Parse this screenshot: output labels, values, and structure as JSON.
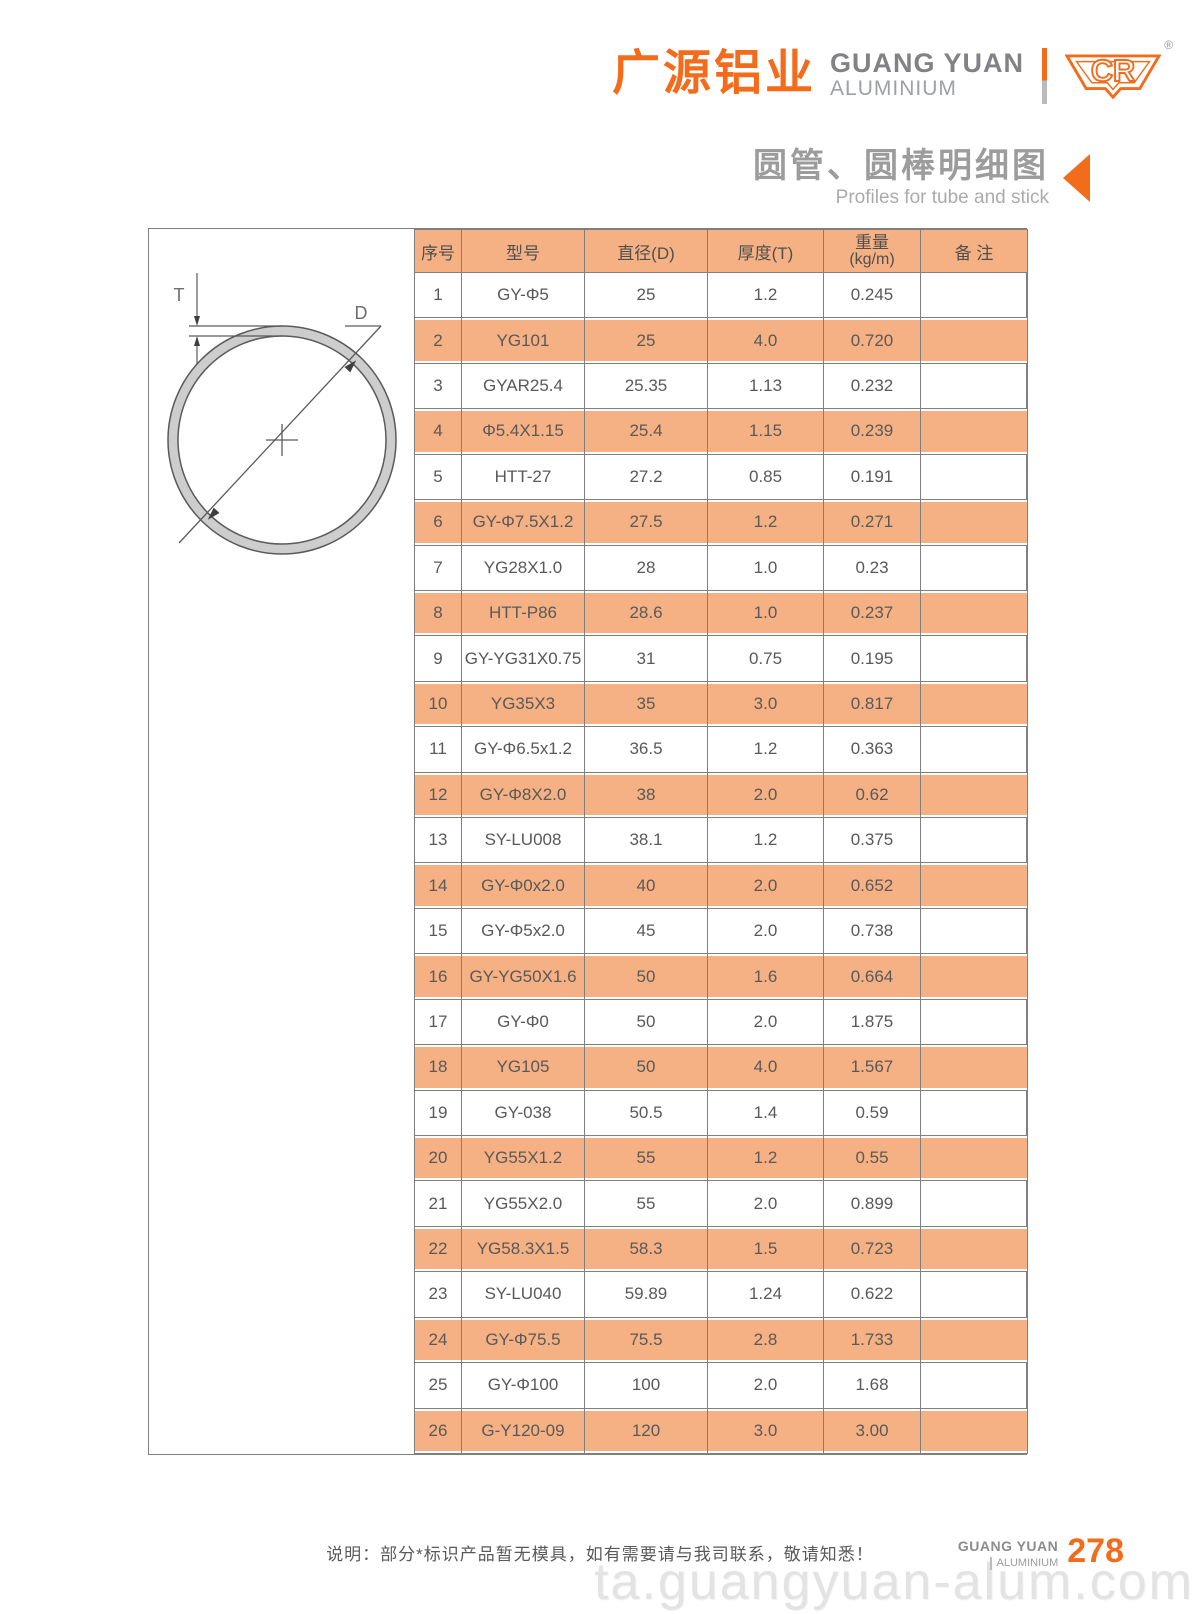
{
  "brand": {
    "logo_cn": "广源铝业",
    "logo_en_line1": "GUANG YUAN",
    "logo_en_line2": "ALUMINIUM",
    "logo_mark": "CR",
    "registered": "®",
    "accent_color": "#F26C1B"
  },
  "page_title": {
    "cn": "圆管、圆棒明细图",
    "en": "Profiles for tube and stick"
  },
  "diagram": {
    "label_d": "D",
    "label_t": "T"
  },
  "table": {
    "headers": [
      "序号",
      "型号",
      "直径(D)",
      "厚度(T)",
      "重量",
      "备 注"
    ],
    "weight_sub": "(kg/m)",
    "row_alt_color": "#F5B183",
    "border_color": "#7F7F7F",
    "rows": [
      [
        "1",
        "GY-Φ5",
        "25",
        "1.2",
        "0.245",
        ""
      ],
      [
        "2",
        "YG101",
        "25",
        "4.0",
        "0.720",
        ""
      ],
      [
        "3",
        "GYAR25.4",
        "25.35",
        "1.13",
        "0.232",
        ""
      ],
      [
        "4",
        "Φ5.4X1.15",
        "25.4",
        "1.15",
        "0.239",
        ""
      ],
      [
        "5",
        "HTT-27",
        "27.2",
        "0.85",
        "0.191",
        ""
      ],
      [
        "6",
        "GY-Φ7.5X1.2",
        "27.5",
        "1.2",
        "0.271",
        ""
      ],
      [
        "7",
        "YG28X1.0",
        "28",
        "1.0",
        "0.23",
        ""
      ],
      [
        "8",
        "HTT-P86",
        "28.6",
        "1.0",
        "0.237",
        ""
      ],
      [
        "9",
        "GY-YG31X0.75",
        "31",
        "0.75",
        "0.195",
        ""
      ],
      [
        "10",
        "YG35X3",
        "35",
        "3.0",
        "0.817",
        ""
      ],
      [
        "11",
        "GY-Φ6.5x1.2",
        "36.5",
        "1.2",
        "0.363",
        ""
      ],
      [
        "12",
        "GY-Φ8X2.0",
        "38",
        "2.0",
        "0.62",
        ""
      ],
      [
        "13",
        "SY-LU008",
        "38.1",
        "1.2",
        "0.375",
        ""
      ],
      [
        "14",
        "GY-Φ0x2.0",
        "40",
        "2.0",
        "0.652",
        ""
      ],
      [
        "15",
        "GY-Φ5x2.0",
        "45",
        "2.0",
        "0.738",
        ""
      ],
      [
        "16",
        "GY-YG50X1.6",
        "50",
        "1.6",
        "0.664",
        ""
      ],
      [
        "17",
        "GY-Φ0",
        "50",
        "2.0",
        "1.875",
        ""
      ],
      [
        "18",
        "YG105",
        "50",
        "4.0",
        "1.567",
        ""
      ],
      [
        "19",
        "GY-038",
        "50.5",
        "1.4",
        "0.59",
        ""
      ],
      [
        "20",
        "YG55X1.2",
        "55",
        "1.2",
        "0.55",
        ""
      ],
      [
        "21",
        "YG55X2.0",
        "55",
        "2.0",
        "0.899",
        ""
      ],
      [
        "22",
        "YG58.3X1.5",
        "58.3",
        "1.5",
        "0.723",
        ""
      ],
      [
        "23",
        "SY-LU040",
        "59.89",
        "1.24",
        "0.622",
        ""
      ],
      [
        "24",
        "GY-Φ75.5",
        "75.5",
        "2.8",
        "1.733",
        ""
      ],
      [
        "25",
        "GY-Φ100",
        "100",
        "2.0",
        "1.68",
        ""
      ],
      [
        "26",
        "G-Y120-09",
        "120",
        "3.0",
        "3.00",
        ""
      ]
    ]
  },
  "footer": {
    "note": "说明：部分*标识产品暂无模具，如有需要请与我司联系，敬请知悉！",
    "logo_line1": "GUANG YUAN",
    "logo_line2": "ALUMINIUM",
    "page_number": "278",
    "watermark": "ta.guangyuan-alum.com"
  }
}
